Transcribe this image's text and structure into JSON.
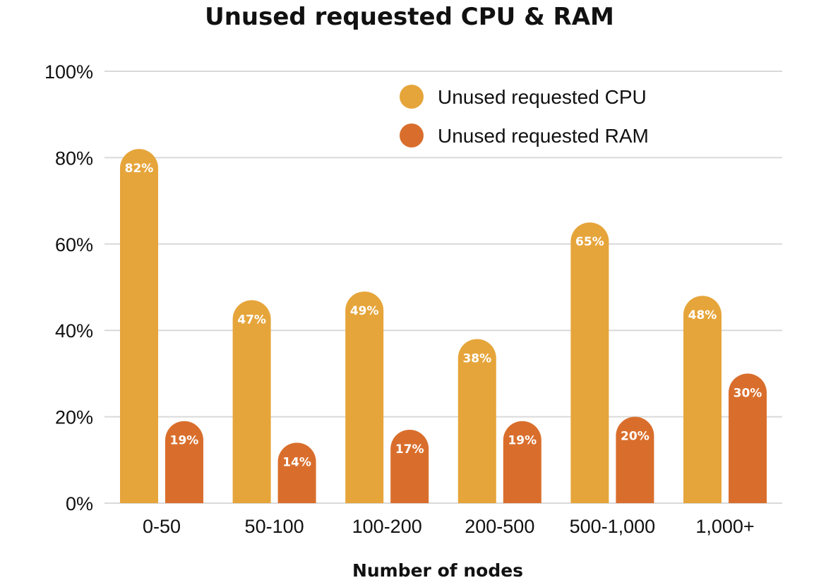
{
  "chart_data": {
    "type": "bar",
    "title": "Unused requested CPU & RAM",
    "xlabel": "Number of nodes",
    "ylabel": "",
    "ylim": [
      0,
      100
    ],
    "yticks": [
      "0%",
      "20%",
      "40%",
      "60%",
      "80%",
      "100%"
    ],
    "ytick_values": [
      0,
      20,
      40,
      60,
      80,
      100
    ],
    "grid": true,
    "legend_position": "top-right",
    "categories": [
      "0-50",
      "50-100",
      "100-200",
      "200-500",
      "500-1,000",
      "1,000+"
    ],
    "series": [
      {
        "name": "Unused requested CPU",
        "color": "#E6A53A",
        "values": [
          82,
          47,
          49,
          38,
          65,
          48
        ],
        "labels": [
          "82%",
          "47%",
          "49%",
          "38%",
          "65%",
          "48%"
        ]
      },
      {
        "name": "Unused requested RAM",
        "color": "#D96E2C",
        "values": [
          19,
          14,
          17,
          19,
          20,
          30
        ],
        "labels": [
          "19%",
          "14%",
          "17%",
          "19%",
          "20%",
          "30%"
        ]
      }
    ]
  }
}
